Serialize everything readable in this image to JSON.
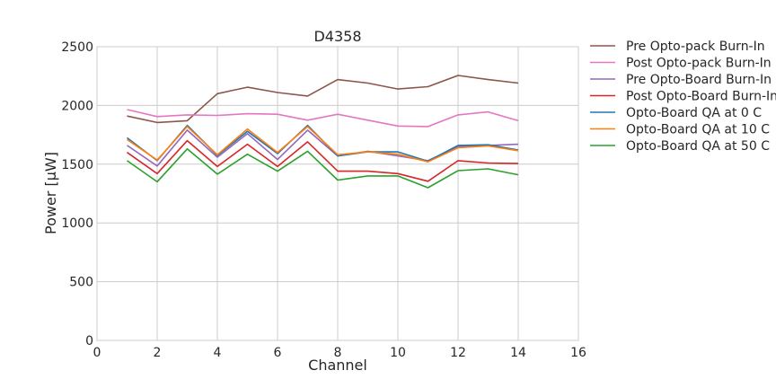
{
  "chart_data": {
    "type": "line",
    "title": "D4358",
    "xlabel": "Channel",
    "ylabel": "Power [μW]",
    "xlim": [
      0,
      16
    ],
    "ylim": [
      0,
      2500
    ],
    "xticks": [
      "0",
      "2",
      "4",
      "6",
      "8",
      "10",
      "12",
      "14",
      "16"
    ],
    "yticks": [
      "0",
      "500",
      "1000",
      "1500",
      "2000",
      "2500"
    ],
    "grid": true,
    "legend_position": "outside-right",
    "x": [
      1,
      2,
      3,
      4,
      5,
      6,
      7,
      8,
      9,
      10,
      11,
      12,
      13,
      14
    ],
    "series": [
      {
        "name": "Pre Opto-pack Burn-In",
        "color": "#8c564b",
        "values": [
          1910,
          1855,
          1870,
          2100,
          2155,
          2110,
          2080,
          2220,
          2190,
          2140,
          2160,
          2255,
          2220,
          2190
        ]
      },
      {
        "name": "Post Opto-pack Burn-In",
        "color": "#e377c2",
        "values": [
          1965,
          1905,
          1920,
          1915,
          1930,
          1925,
          1875,
          1925,
          1875,
          1825,
          1820,
          1920,
          1945,
          1870
        ]
      },
      {
        "name": "Pre Opto-Board Burn-In",
        "color": "#9467bd",
        "values": [
          1660,
          1485,
          1790,
          1560,
          1760,
          1540,
          1790,
          1570,
          1610,
          1570,
          1530,
          1650,
          1660,
          1670
        ]
      },
      {
        "name": "Post Opto-Board Burn-In",
        "color": "#d62728",
        "values": [
          1600,
          1420,
          1700,
          1480,
          1670,
          1480,
          1690,
          1440,
          1440,
          1420,
          1355,
          1530,
          1510,
          1505
        ]
      },
      {
        "name": "Opto-Board QA at 0 C",
        "color": "#1f77b4",
        "values": [
          1725,
          1530,
          1830,
          1575,
          1780,
          1590,
          1830,
          1570,
          1605,
          1605,
          1525,
          1660,
          1665,
          1620
        ]
      },
      {
        "name": "Opto-Board QA at 10 C",
        "color": "#ff7f0e",
        "values": [
          1710,
          1535,
          1820,
          1580,
          1800,
          1600,
          1820,
          1580,
          1605,
          1585,
          1520,
          1640,
          1655,
          1615
        ]
      },
      {
        "name": "Opto-Board QA at 50 C",
        "color": "#2ca02c",
        "values": [
          1530,
          1350,
          1630,
          1415,
          1585,
          1440,
          1610,
          1365,
          1400,
          1400,
          1300,
          1445,
          1460,
          1410
        ]
      }
    ]
  }
}
